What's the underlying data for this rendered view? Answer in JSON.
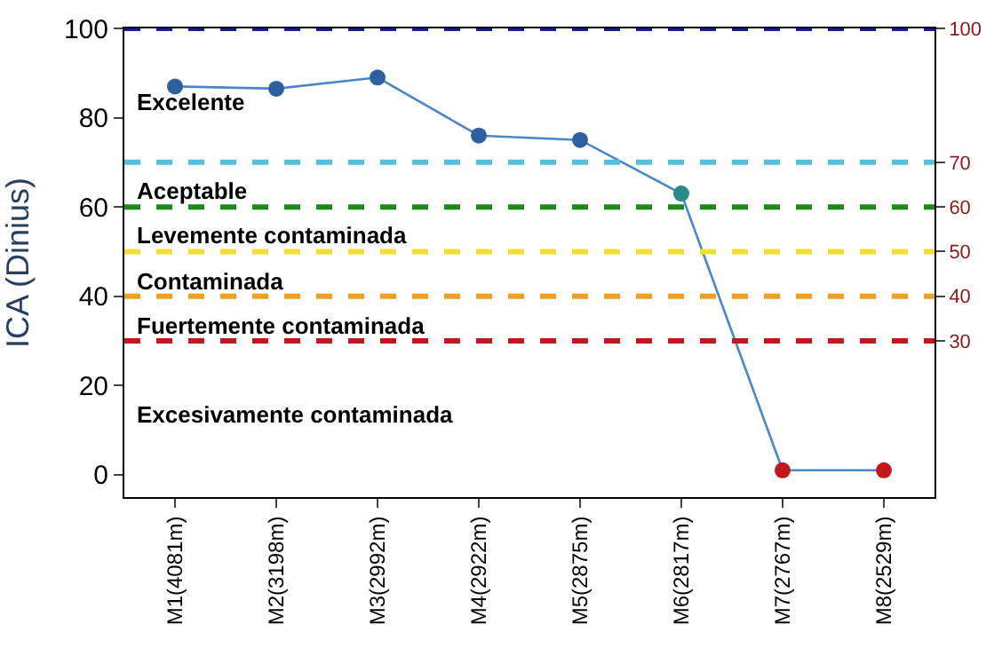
{
  "chart_data": {
    "type": "line",
    "ylabel": "ICA (Dinius)",
    "categories": [
      "M1(4081m)",
      "M2(3198m)",
      "M3(2992m)",
      "M4(2922m)",
      "M5(2875m)",
      "M6(2817m)",
      "M7(2767m)",
      "M8(2529m)"
    ],
    "series": [
      {
        "color": "#4a86c8",
        "colors": [
          "#2e5f9e",
          "#2e5f9e",
          "#2e5f9e",
          "#2e5f9e",
          "#2e5f9e",
          "#2a8a8a",
          "#c0181c",
          "#c0181c"
        ],
        "values": [
          87,
          86.5,
          89,
          76,
          75,
          63,
          1,
          1
        ]
      }
    ],
    "marker": "circle",
    "ylim": [
      -5,
      100
    ],
    "yticks": [
      0,
      20,
      40,
      60,
      80,
      100
    ],
    "y2lim": [
      -5,
      100
    ],
    "y2ticks": [
      30,
      40,
      50,
      60,
      70,
      100
    ],
    "ref_lines": [
      {
        "axis": "y",
        "value": 100,
        "label": "Excelente",
        "color": "#1a1a9c",
        "line_style": "dashed"
      },
      {
        "axis": "y",
        "value": 70,
        "label": "Aceptable",
        "color": "#4fc3e0",
        "line_style": "dashed"
      },
      {
        "axis": "y",
        "value": 60,
        "label": "Levemente contaminada",
        "color": "#1a8a1a",
        "line_style": "dashed"
      },
      {
        "axis": "y",
        "value": 50,
        "label": "Contaminada",
        "color": "#f0e030",
        "line_style": "dashed"
      },
      {
        "axis": "y",
        "value": 40,
        "label": "Fuertemente contaminada",
        "color": "#f0a020",
        "line_style": "dashed"
      },
      {
        "axis": "y",
        "value": 30,
        "label": "Excesivamente contaminada",
        "color": "#c0181c",
        "line_style": "dashed"
      }
    ]
  }
}
